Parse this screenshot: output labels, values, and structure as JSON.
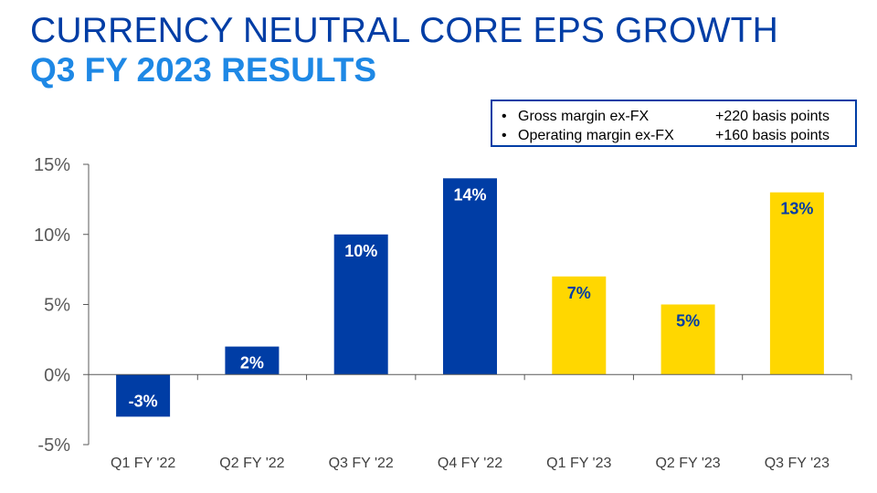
{
  "title": {
    "line1": "CURRENCY NEUTRAL CORE EPS GROWTH",
    "line2": "Q3 FY 2023 RESULTS"
  },
  "notes": [
    {
      "label": "Gross margin ex-FX",
      "value": "+220 basis points"
    },
    {
      "label": "Operating margin ex-FX",
      "value": "+160 basis points"
    }
  ],
  "colors": {
    "title": "#003DA5",
    "subtitle": "#1E88E5",
    "fy22_bar": "#003DA5",
    "fy23_bar": "#FFD700",
    "label_on_blue": "#ffffff",
    "label_on_yellow": "#003DA5",
    "axis": "#595959"
  },
  "chart_data": {
    "type": "bar",
    "categories": [
      "Q1 FY '22",
      "Q2 FY '22",
      "Q3 FY '22",
      "Q4 FY '22",
      "Q1 FY '23",
      "Q2 FY '23",
      "Q3 FY '23"
    ],
    "values": [
      -3,
      2,
      10,
      14,
      7,
      5,
      13
    ],
    "data_labels": [
      "-3%",
      "2%",
      "10%",
      "14%",
      "7%",
      "5%",
      "13%"
    ],
    "bar_colors": [
      "#003DA5",
      "#003DA5",
      "#003DA5",
      "#003DA5",
      "#FFD700",
      "#FFD700",
      "#FFD700"
    ],
    "ylim": [
      -5,
      15
    ],
    "yticks": [
      15,
      10,
      5,
      0,
      -5
    ],
    "ytick_labels": [
      "15%",
      "10%",
      "5%",
      "0%",
      "-5%"
    ],
    "grid": false,
    "legend": "none"
  }
}
